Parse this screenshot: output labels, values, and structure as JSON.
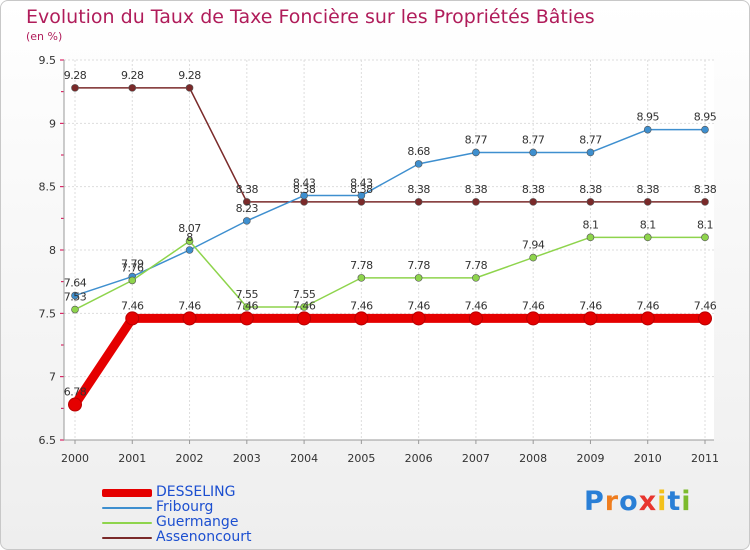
{
  "title": "Evolution du Taux de Taxe Foncière sur les Propriétés Bâties",
  "subtitle": "(en %)",
  "logo": {
    "letters": [
      "P",
      "r",
      "o",
      "x",
      "i",
      "t",
      "i"
    ],
    "colors": [
      "#2a7fd6",
      "#ef7d1e",
      "#2a7fd6",
      "#e8352e",
      "#f3c11a",
      "#2a7fd6",
      "#7dbb2d"
    ]
  },
  "chart_data": {
    "type": "line",
    "title": "Evolution du Taux de Taxe Foncière sur les Propriétés Bâties",
    "ylabel": "(en %)",
    "ylim": [
      6.5,
      9.5
    ],
    "yticks": [
      "6.5",
      "7",
      "7.5",
      "8",
      "8.5",
      "9",
      "9.5"
    ],
    "categories": [
      "2000",
      "2001",
      "2002",
      "2003",
      "2004",
      "2005",
      "2006",
      "2007",
      "2008",
      "2009",
      "2010",
      "2011"
    ],
    "series": [
      {
        "name": "Assenoncourt",
        "color": "#7a2a2a",
        "values": [
          9.28,
          9.28,
          9.28,
          8.38,
          8.38,
          8.38,
          8.38,
          8.38,
          8.38,
          8.38,
          8.38,
          8.38
        ],
        "labels": [
          "9.28",
          "9.28",
          "9.28",
          "8.38",
          "8.38",
          "8.38",
          "8.38",
          "8.38",
          "8.38",
          "8.38",
          "8.38",
          "8.38"
        ]
      },
      {
        "name": "Fribourg",
        "color": "#3e8fcf",
        "values": [
          7.64,
          7.79,
          8.0,
          8.23,
          8.43,
          8.43,
          8.68,
          8.77,
          8.77,
          8.77,
          8.95,
          8.95
        ],
        "labels": [
          "7.64",
          "7.79",
          "8",
          "8.23",
          "8.43",
          "8.43",
          "8.68",
          "8.77",
          "8.77",
          "8.77",
          "8.95",
          "8.95"
        ]
      },
      {
        "name": "Guermange",
        "color": "#8ed44c",
        "values": [
          7.53,
          7.76,
          8.07,
          7.55,
          7.55,
          7.78,
          7.78,
          7.78,
          7.94,
          8.1,
          8.1,
          8.1
        ],
        "labels": [
          "7.53",
          "7.76",
          "8.07",
          "7.55",
          "7.55",
          "7.78",
          "7.78",
          "7.78",
          "7.94",
          "8.1",
          "8.1",
          "8.1"
        ]
      },
      {
        "name": "DESSELING",
        "color": "#e50000",
        "values": [
          6.78,
          7.46,
          7.46,
          7.46,
          7.46,
          7.46,
          7.46,
          7.46,
          7.46,
          7.46,
          7.46,
          7.46
        ],
        "labels": [
          "6.78",
          "7.46",
          "7.46",
          "7.46",
          "7.46",
          "7.46",
          "7.46",
          "7.46",
          "7.46",
          "7.46",
          "7.46",
          "7.46"
        ]
      }
    ],
    "legend": [
      "DESSELING",
      "Fribourg",
      "Guermange",
      "Assenoncourt"
    ],
    "grid": true
  }
}
